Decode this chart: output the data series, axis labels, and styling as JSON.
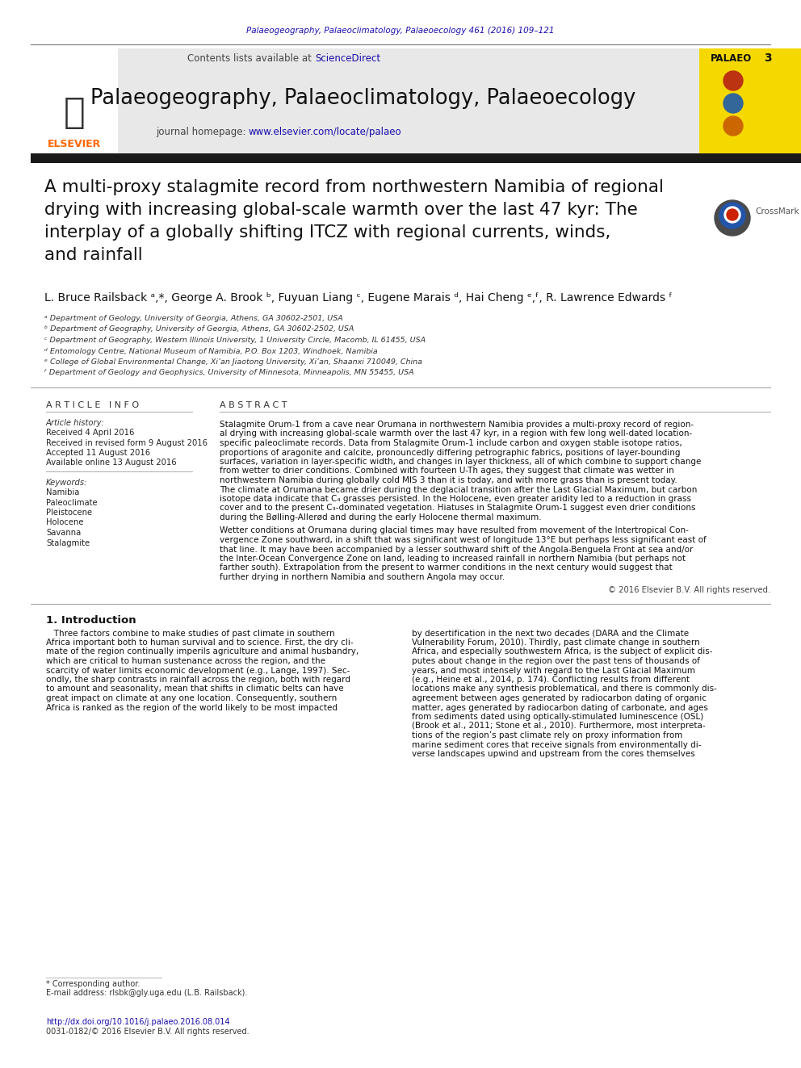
{
  "journal_ref": "Palaeogeography, Palaeoclimatology, Palaeoecology 461 (2016) 109–121",
  "journal_name": "Palaeogeography, Palaeoclimatology, Palaeoecology",
  "affil_a": "ᵃ Department of Geology, University of Georgia, Athens, GA 30602-2501, USA",
  "affil_b": "ᵇ Department of Geography, University of Georgia, Athens, GA 30602-2502, USA",
  "affil_c": "ᶜ Department of Geography, Western Illinois University, 1 University Circle, Macomb, IL 61455, USA",
  "affil_d": "ᵈ Entomology Centre, National Museum of Namibia, P.O. Box 1203, Windhoek, Namibia",
  "affil_e": "ᵉ College of Global Environmental Change, Xi’an Jiaotong University, Xi’an, Shaanxi 710049, China",
  "affil_f": "ᶠ Department of Geology and Geophysics, University of Minnesota, Minneapolis, MN 55455, USA",
  "article_info_header": "A R T I C L E   I N F O",
  "received": "Received 4 April 2016",
  "received_revised": "Received in revised form 9 August 2016",
  "accepted": "Accepted 11 August 2016",
  "available": "Available online 13 August 2016",
  "keywords": [
    "Namibia",
    "Paleoclimate",
    "Pleistocene",
    "Holocene",
    "Savanna",
    "Stalagmite"
  ],
  "abstract_header": "A B S T R A C T",
  "copyright": "© 2016 Elsevier B.V. All rights reserved.",
  "intro_header": "1. Introduction",
  "footnote_star": "* Corresponding author.",
  "footnote_email": "E-mail address: rlsbk@gly.uga.edu (L.B. Railsback).",
  "footer_doi": "http://dx.doi.org/10.1016/j.palaeo.2016.08.014",
  "footer_issn": "0031-0182/© 2016 Elsevier B.V. All rights reserved.",
  "bg_header_color": "#e8e8e8",
  "yellow_color": "#f5d800",
  "blue_link_color": "#1a0dab",
  "orange_elsevier": "#FF6600",
  "black_bar_color": "#1a1a1a",
  "page_bg": "#ffffff",
  "title_lines": [
    "A multi-proxy stalagmite record from northwestern Namibia of regional",
    "drying with increasing global-scale warmth over the last 47 kyr: The",
    "interplay of a globally shifting ITCZ with regional currents, winds,",
    "and rainfall"
  ],
  "authors_line": "L. Bruce Railsback ᵃ,*, George A. Brook ᵇ, Fuyuan Liang ᶜ, Eugene Marais ᵈ, Hai Cheng ᵉ,ᶠ, R. Lawrence Edwards ᶠ",
  "abs_lines_p1": [
    "Stalagmite Orum-1 from a cave near Orumana in northwestern Namibia provides a multi-proxy record of region-",
    "al drying with increasing global-scale warmth over the last 47 kyr, in a region with few long well-dated location-",
    "specific paleoclimate records. Data from Stalagmite Orum-1 include carbon and oxygen stable isotope ratios,",
    "proportions of aragonite and calcite, pronouncedly differing petrographic fabrics, positions of layer-bounding",
    "surfaces, variation in layer-specific width, and changes in layer thickness, all of which combine to support change",
    "from wetter to drier conditions. Combined with fourteen U-Th ages, they suggest that climate was wetter in",
    "northwestern Namibia during globally cold MIS 3 than it is today, and with more grass than is present today.",
    "The climate at Orumana became drier during the deglacial transition after the Last Glacial Maximum, but carbon",
    "isotope data indicate that C₄ grasses persisted. In the Holocene, even greater aridity led to a reduction in grass",
    "cover and to the present C₃-dominated vegetation. Hiatuses in Stalagmite Orum-1 suggest even drier conditions",
    "during the Bølling-Allerød and during the early Holocene thermal maximum."
  ],
  "abs_lines_p2": [
    "Wetter conditions at Orumana during glacial times may have resulted from movement of the Intertropical Con-",
    "vergence Zone southward, in a shift that was significant west of longitude 13°E but perhaps less significant east of",
    "that line. It may have been accompanied by a lesser southward shift of the Angola-Benguela Front at sea and/or",
    "the Inter-Ocean Convergence Zone on land, leading to increased rainfall in northern Namibia (but perhaps not",
    "farther south). Extrapolation from the present to warmer conditions in the next century would suggest that",
    "further drying in northern Namibia and southern Angola may occur."
  ],
  "intro_left_lines": [
    "   Three factors combine to make studies of past climate in southern",
    "Africa important both to human survival and to science. First, the dry cli-",
    "mate of the region continually imperils agriculture and animal husbandry,",
    "which are critical to human sustenance across the region, and the",
    "scarcity of water limits economic development (e.g., Lange, 1997). Sec-",
    "ondly, the sharp contrasts in rainfall across the region, both with regard",
    "to amount and seasonality, mean that shifts in climatic belts can have",
    "great impact on climate at any one location. Consequently, southern",
    "Africa is ranked as the region of the world likely to be most impacted"
  ],
  "intro_right_lines": [
    "by desertification in the next two decades (DARA and the Climate",
    "Vulnerability Forum, 2010). Thirdly, past climate change in southern",
    "Africa, and especially southwestern Africa, is the subject of explicit dis-",
    "putes about change in the region over the past tens of thousands of",
    "years, and most intensely with regard to the Last Glacial Maximum",
    "(e.g., Heine et al., 2014, p. 174). Conflicting results from different",
    "locations make any synthesis problematical, and there is commonly dis-",
    "agreement between ages generated by radiocarbon dating of organic",
    "matter, ages generated by radiocarbon dating of carbonate, and ages",
    "from sediments dated using optically-stimulated luminescence (OSL)",
    "(Brook et al., 2011; Stone et al., 2010). Furthermore, most interpreta-",
    "tions of the region’s past climate rely on proxy information from",
    "marine sediment cores that receive signals from environmentally di-",
    "verse landscapes upwind and upstream from the cores themselves"
  ],
  "palaeo_globe_colors": [
    "#bb3311",
    "#336699",
    "#cc6600"
  ]
}
